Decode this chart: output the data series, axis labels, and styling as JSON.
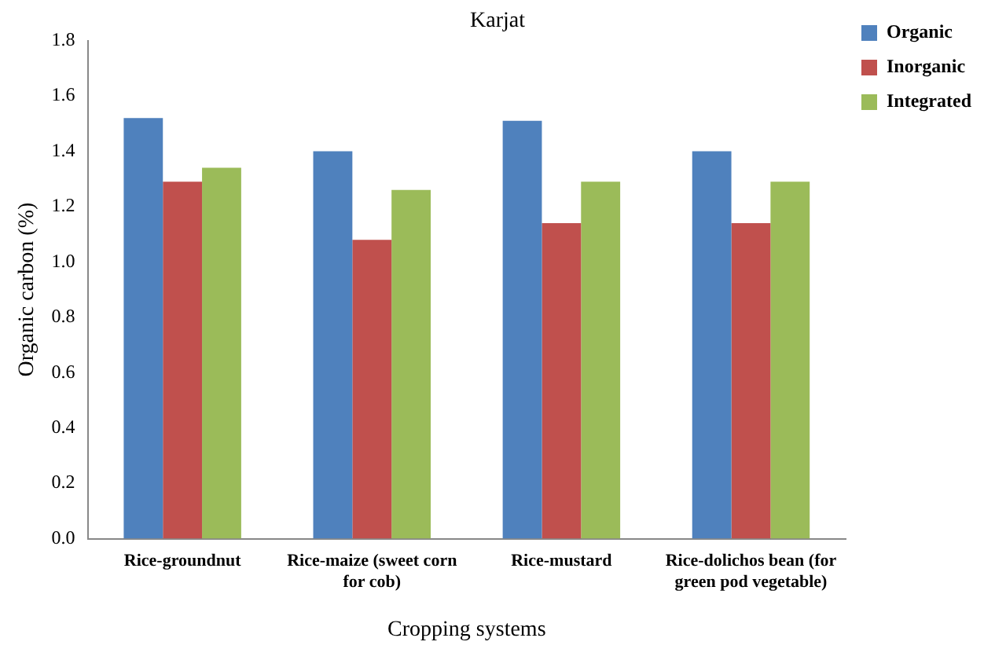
{
  "chart_data": {
    "type": "bar",
    "title": "Karjat",
    "xlabel": "Cropping systems",
    "ylabel": "Organic carbon (%)",
    "categories": [
      "Rice-groundnut",
      "Rice-maize (sweet corn for cob)",
      "Rice-mustard",
      "Rice-dolichos bean (for green pod vegetable)"
    ],
    "series": [
      {
        "name": "Organic",
        "color": "#4f81bd",
        "values": [
          1.52,
          1.4,
          1.51,
          1.4
        ]
      },
      {
        "name": "Inorganic",
        "color": "#c0504d",
        "values": [
          1.29,
          1.08,
          1.14,
          1.14
        ]
      },
      {
        "name": "Integrated",
        "color": "#9bbb59",
        "values": [
          1.34,
          1.26,
          1.29,
          1.29
        ]
      }
    ],
    "ylim": [
      0,
      1.8
    ],
    "yticks": [
      {
        "value": 0,
        "label": "0.0"
      },
      {
        "value": 0.2,
        "label": "0.2"
      },
      {
        "value": 0.4,
        "label": "0.4"
      },
      {
        "value": 0.6,
        "label": "0.6"
      },
      {
        "value": 0.8,
        "label": "0.8"
      },
      {
        "value": 1.0,
        "label": "1.0"
      },
      {
        "value": 1.2,
        "label": "1.2"
      },
      {
        "value": 1.4,
        "label": "1.4"
      },
      {
        "value": 1.6,
        "label": "1.6"
      },
      {
        "value": 1.8,
        "label": "1.8"
      }
    ],
    "grid": false,
    "legend": "top right"
  }
}
